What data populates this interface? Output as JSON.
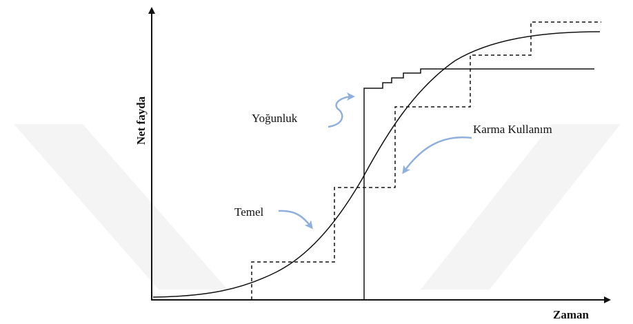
{
  "axes": {
    "y_label": "Net fayda",
    "x_label": "Zaman"
  },
  "annotations": {
    "density": "Yoğunluk",
    "mixed_use": "Karma Kullanım",
    "base": "Temel"
  }
}
